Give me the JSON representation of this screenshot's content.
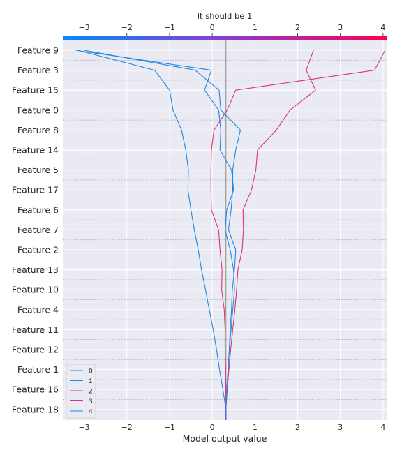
{
  "chart_data": {
    "type": "line",
    "title": "It should be 1",
    "xlabel": "Model output value",
    "ylabel": "",
    "xlim": [
      -3.5,
      4.1
    ],
    "x_ticks": [
      -3,
      -2,
      -1,
      0,
      1,
      2,
      3,
      4
    ],
    "x_tick_labels": [
      "−3",
      "−2",
      "−1",
      "0",
      "1",
      "2",
      "3",
      "4"
    ],
    "base_value": 0.32,
    "features": [
      "Feature 9",
      "Feature 3",
      "Feature 15",
      "Feature 0",
      "Feature 8",
      "Feature 14",
      "Feature 5",
      "Feature 17",
      "Feature 6",
      "Feature 7",
      "Feature 2",
      "Feature 13",
      "Feature 10",
      "Feature 4",
      "Feature 11",
      "Feature 12",
      "Feature 1",
      "Feature 16",
      "Feature 18"
    ],
    "series": [
      {
        "name": "0",
        "color": "#1e88e5",
        "values": [
          -3.15,
          -1.35,
          -1.0,
          -0.92,
          -0.72,
          -0.62,
          -0.56,
          -0.57,
          -0.5,
          -0.42,
          -0.33,
          -0.25,
          -0.16,
          -0.07,
          0.02,
          0.1,
          0.17,
          0.25,
          0.32
        ]
      },
      {
        "name": "1",
        "color": "#1e88e5",
        "values": [
          -3.0,
          -0.4,
          0.16,
          0.2,
          0.66,
          0.55,
          0.48,
          0.48,
          0.44,
          0.38,
          0.55,
          0.52,
          0.47,
          0.45,
          0.42,
          0.4,
          0.37,
          0.34,
          0.32
        ]
      },
      {
        "name": "2",
        "color": "#dd3178",
        "values": [
          2.37,
          2.2,
          2.42,
          1.82,
          1.5,
          1.06,
          1.02,
          0.92,
          0.72,
          0.73,
          0.7,
          0.6,
          0.57,
          0.53,
          0.48,
          0.43,
          0.39,
          0.35,
          0.32
        ]
      },
      {
        "name": "3",
        "color": "#dd3178",
        "values": [
          4.05,
          3.8,
          0.55,
          0.35,
          0.04,
          -0.02,
          -0.03,
          -0.03,
          -0.02,
          0.15,
          0.18,
          0.23,
          0.22,
          0.28,
          0.3,
          0.3,
          0.31,
          0.32,
          0.32
        ]
      },
      {
        "name": "4",
        "color": "#1e88e5",
        "values": [
          -3.2,
          -0.02,
          -0.18,
          0.15,
          0.2,
          0.18,
          0.45,
          0.5,
          0.34,
          0.3,
          0.42,
          0.5,
          0.52,
          0.48,
          0.44,
          0.4,
          0.37,
          0.34,
          0.32
        ]
      }
    ],
    "legend_position": "lower-left",
    "grid": true,
    "colorbar": {
      "from": "#008bfb",
      "mid": "#8b3ad0",
      "to": "#ff0052"
    }
  }
}
